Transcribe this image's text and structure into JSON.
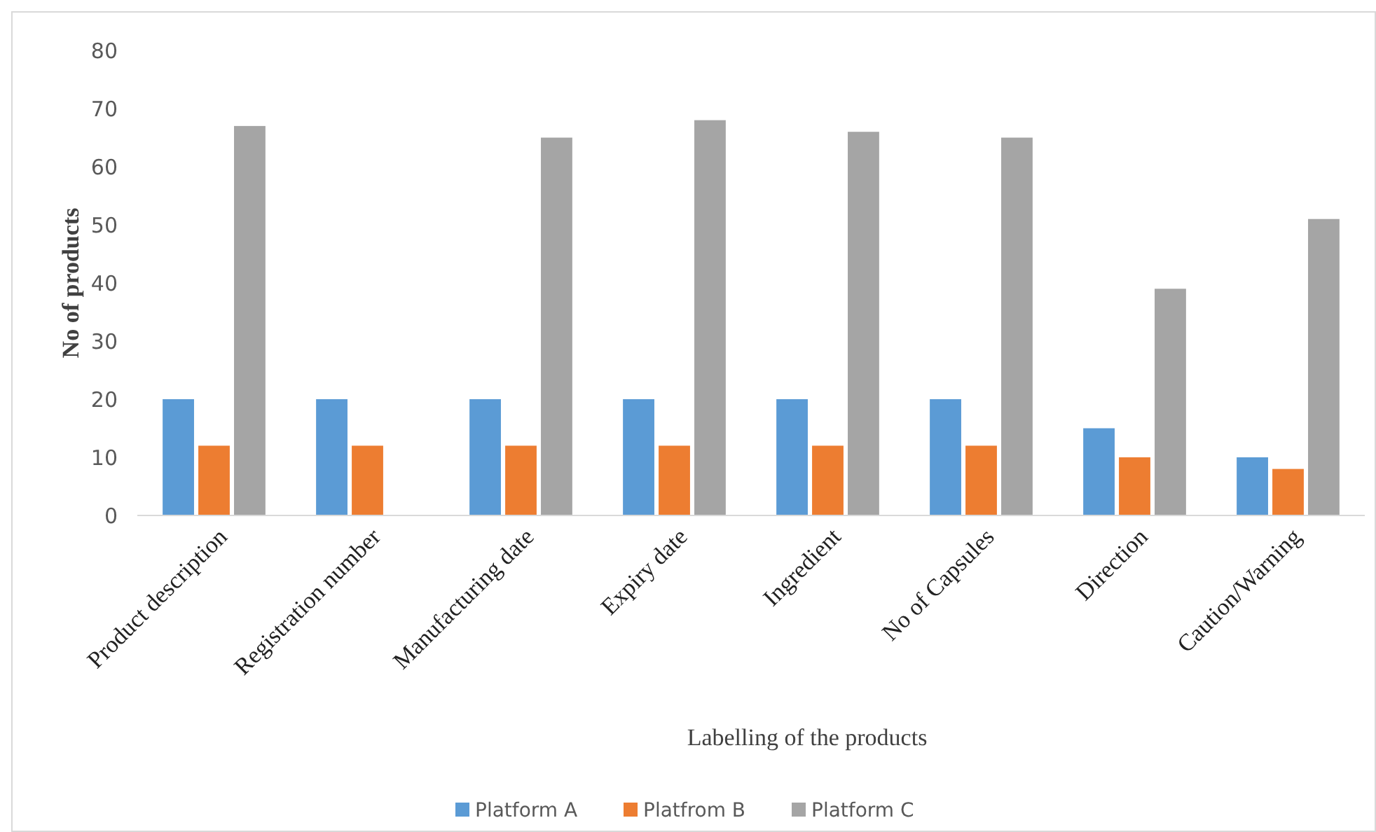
{
  "chart_data": {
    "type": "bar",
    "xlabel": "Labelling  of the products",
    "ylabel": "No of products",
    "categories": [
      "Product description",
      "Registration number",
      "Manufacturing date",
      "Expiry date",
      "Ingredient",
      "No of Capsules",
      "Direction",
      "Caution/Warning"
    ],
    "series": [
      {
        "name": "Platform A",
        "color": "#5b9bd5",
        "values": [
          20,
          20,
          20,
          20,
          20,
          20,
          15,
          10
        ]
      },
      {
        "name": "Platfrom B",
        "color": "#ed7d31",
        "values": [
          12,
          12,
          12,
          12,
          12,
          12,
          10,
          8
        ]
      },
      {
        "name": "Platform C",
        "color": "#a5a5a5",
        "values": [
          67,
          0,
          65,
          68,
          66,
          65,
          39,
          51
        ]
      }
    ],
    "ylim": [
      0,
      80
    ],
    "yticks": [
      0,
      10,
      20,
      30,
      40,
      50,
      60,
      70,
      80
    ],
    "grid": false,
    "legend": "bottom"
  }
}
